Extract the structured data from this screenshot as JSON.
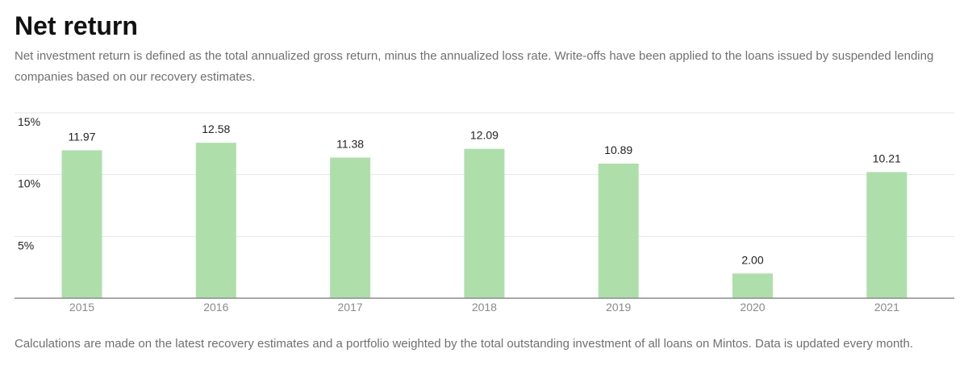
{
  "header": {
    "title": "Net return",
    "description": "Net investment return is defined as the total annualized gross return, minus the annualized loss rate. Write-offs have been applied to the loans issued by suspended lending companies based on our recovery estimates."
  },
  "footnote": "Calculations are made on the latest recovery estimates and a portfolio weighted by the total outstanding investment of all loans on Mintos. Data is updated every month.",
  "colors": {
    "bar": "#aedfab",
    "grid": "#e6e6e6",
    "axis": "#8c8c8c"
  },
  "chart_data": {
    "type": "bar",
    "title": "",
    "xlabel": "",
    "ylabel": "",
    "categories": [
      "2015",
      "2016",
      "2017",
      "2018",
      "2019",
      "2020",
      "2021"
    ],
    "values": [
      11.97,
      12.58,
      11.38,
      12.09,
      10.89,
      2.0,
      10.21
    ],
    "data_labels": [
      "11.97",
      "12.58",
      "11.38",
      "12.09",
      "10.89",
      "2.00",
      "10.21"
    ],
    "yticks": [
      5,
      10,
      15
    ],
    "ytick_labels": [
      "5%",
      "10%",
      "15%"
    ],
    "ylim": [
      0,
      15
    ],
    "grid": true,
    "legend": "none"
  }
}
